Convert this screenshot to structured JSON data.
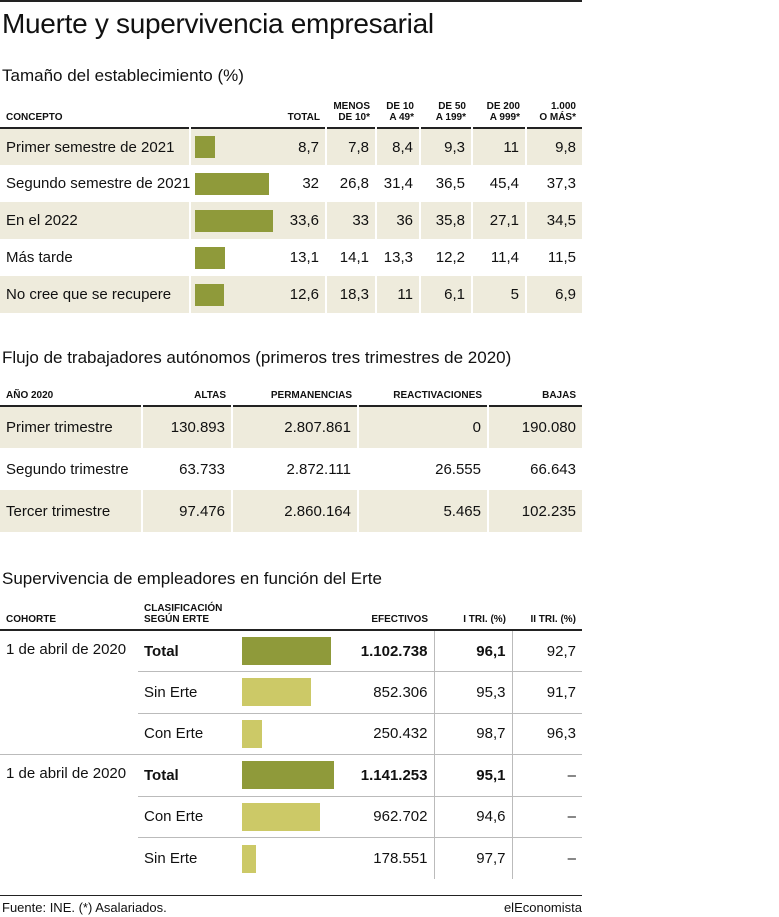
{
  "title": "Muerte y supervivencia empresarial",
  "table1": {
    "title": "Tamaño del establecimiento (%)",
    "headers": [
      "CONCEPTO",
      "TOTAL",
      "MENOS DE 10*",
      "DE 10 A 49*",
      "DE 50 A 199*",
      "DE 200 A 999*",
      "1.000 O MÁS*"
    ],
    "header_lines": [
      [
        "CONCEPTO"
      ],
      [
        "TOTAL"
      ],
      [
        "MENOS",
        "DE 10*"
      ],
      [
        "DE 10",
        "A 49*"
      ],
      [
        "DE 50",
        "A 199*"
      ],
      [
        "DE 200",
        "A 999*"
      ],
      [
        "1.000",
        "O MÁS*"
      ]
    ],
    "rows": [
      {
        "label": "Primer semestre de 2021",
        "total": 8.7,
        "total_text": "8,7",
        "values": [
          "7,8",
          "8,4",
          "9,3",
          "11",
          "9,8"
        ]
      },
      {
        "label": "Segundo semestre de 2021",
        "total": 32,
        "total_text": "32",
        "values": [
          "26,8",
          "31,4",
          "36,5",
          "45,4",
          "37,3"
        ]
      },
      {
        "label": "En el 2022",
        "total": 33.6,
        "total_text": "33,6",
        "values": [
          "33",
          "36",
          "35,8",
          "27,1",
          "34,5"
        ]
      },
      {
        "label": "Más tarde",
        "total": 13.1,
        "total_text": "13,1",
        "values": [
          "14,1",
          "13,3",
          "12,2",
          "11,4",
          "11,5"
        ]
      },
      {
        "label": "No cree que se recupere",
        "total": 12.6,
        "total_text": "12,6",
        "values": [
          "18,3",
          "11",
          "6,1",
          "5",
          "6,9"
        ]
      }
    ],
    "bar_color": "#8f9a3a"
  },
  "table2": {
    "title": "Flujo de trabajadores autónomos (primeros tres trimestres de 2020)",
    "headers": [
      "AÑO 2020",
      "ALTAS",
      "PERMANENCIAS",
      "REACTIVACIONES",
      "BAJAS"
    ],
    "rows": [
      {
        "label": "Primer trimestre",
        "values": [
          "130.893",
          "2.807.861",
          "0",
          "190.080"
        ]
      },
      {
        "label": "Segundo trimestre",
        "values": [
          "63.733",
          "2.872.111",
          "26.555",
          "66.643"
        ]
      },
      {
        "label": "Tercer trimestre",
        "values": [
          "97.476",
          "2.860.164",
          "5.465",
          "102.235"
        ]
      }
    ]
  },
  "table3": {
    "title": "Supervivencia de empleadores en función del Erte",
    "headers": [
      "COHORTE",
      "CLASIFICACIÓN SEGÚN ERTE",
      "EFECTIVOS",
      "I TRI. (%)",
      "II TRI. (%)"
    ],
    "header_lines": [
      [
        "COHORTE"
      ],
      [
        "CLASIFICACIÓN",
        "SEGÚN ERTE"
      ],
      [
        "EFECTIVOS"
      ],
      [
        "I TRI. (%)"
      ],
      [
        "II TRI. (%)"
      ]
    ],
    "groups": [
      {
        "cohort": "1 de abril de 2020",
        "rows": [
          {
            "label": "Total",
            "bold": true,
            "effectives": 1102738,
            "effectives_text": "1.102.738",
            "t1": "96,1",
            "t2": "92,7",
            "bar": "dark"
          },
          {
            "label": "Sin Erte",
            "bold": false,
            "effectives": 852306,
            "effectives_text": "852.306",
            "t1": "95,3",
            "t2": "91,7",
            "bar": "light"
          },
          {
            "label": "Con Erte",
            "bold": false,
            "effectives": 250432,
            "effectives_text": "250.432",
            "t1": "98,7",
            "t2": "96,3",
            "bar": "light"
          }
        ]
      },
      {
        "cohort": "1 de abril de 2020",
        "rows": [
          {
            "label": "Total",
            "bold": true,
            "effectives": 1141253,
            "effectives_text": "1.141.253",
            "t1": "95,1",
            "t2": "–",
            "bar": "dark"
          },
          {
            "label": "Con Erte",
            "bold": false,
            "effectives": 962702,
            "effectives_text": "962.702",
            "t1": "94,6",
            "t2": "–",
            "bar": "light"
          },
          {
            "label": "Sin Erte",
            "bold": false,
            "effectives": 178551,
            "effectives_text": "178.551",
            "t1": "97,7",
            "t2": "–",
            "bar": "light"
          }
        ]
      }
    ],
    "dark_color": "#8f9a3a",
    "light_color": "#ccc967"
  },
  "footer": {
    "source": "Fuente: INE. (*) Asalariados.",
    "brand": "elEconomista"
  }
}
